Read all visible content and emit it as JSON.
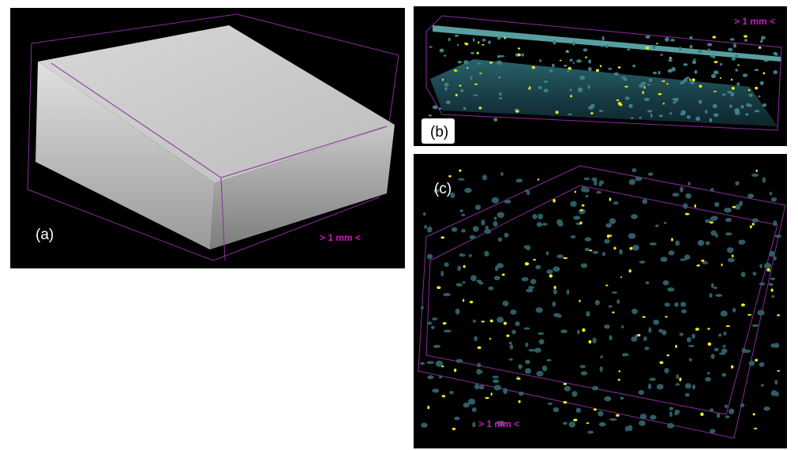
{
  "panels": [
    {
      "label": "(a)",
      "scale_bar": "> 1 mm <"
    },
    {
      "label": "(b)",
      "scale_bar": "> 1 mm <"
    },
    {
      "label": "(c)",
      "scale_bar": "> 1 mm <"
    }
  ]
}
